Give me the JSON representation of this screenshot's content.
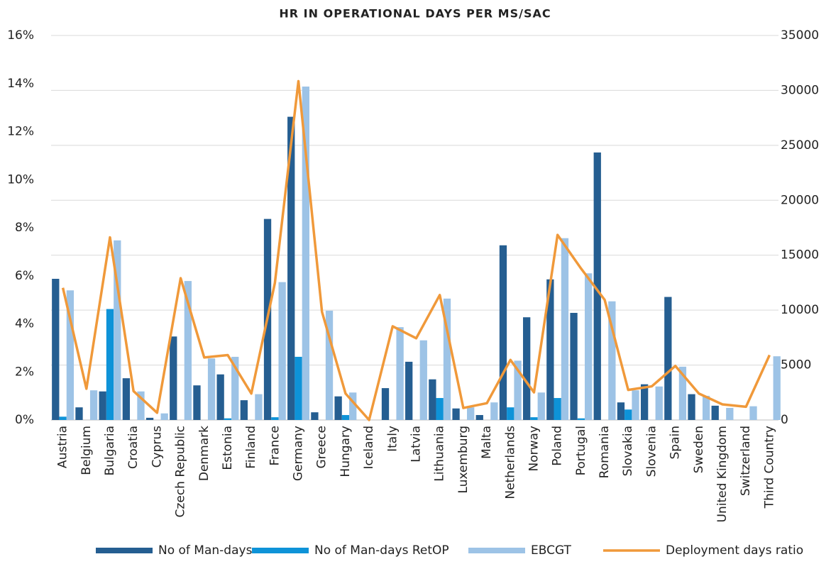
{
  "chart_data": {
    "type": "bar",
    "title": "HR IN OPERATIONAL DAYS PER MS/SAC",
    "categories": [
      "Austria",
      "Belgium",
      "Bulgaria",
      "Croatia",
      "Cyprus",
      "Czech Republic",
      "Denmark",
      "Estonia",
      "Finland",
      "France",
      "Germany",
      "Greece",
      "Hungary",
      "Iceland",
      "Italy",
      "Latvia",
      "Lithuania",
      "Luxemburg",
      "Malta",
      "Netherlands",
      "Norway",
      "Poland",
      "Portugal",
      "Romania",
      "Slovakia",
      "Slovenia",
      "Spain",
      "Sweden",
      "United Kingdom",
      "Switzerland",
      "Third Country"
    ],
    "series": [
      {
        "name": "No of Man-days",
        "color": "#255e91",
        "axis": "y2",
        "values": [
          12850,
          1150,
          2600,
          3800,
          200,
          7600,
          3150,
          4150,
          1800,
          18300,
          27600,
          700,
          2150,
          0,
          2900,
          5300,
          3700,
          1050,
          450,
          15900,
          9350,
          12800,
          9750,
          24350,
          1600,
          3250,
          11200,
          2350,
          1300,
          0,
          0
        ]
      },
      {
        "name": "No of Man-days RetOP",
        "color": "#0e93d8",
        "axis": "y2",
        "values": [
          300,
          0,
          10100,
          0,
          0,
          0,
          0,
          150,
          0,
          250,
          5750,
          0,
          450,
          0,
          0,
          0,
          2000,
          0,
          0,
          1150,
          250,
          2000,
          150,
          0,
          950,
          0,
          0,
          0,
          0,
          0,
          0
        ]
      },
      {
        "name": "EBCGT",
        "color": "#9dc3e6",
        "axis": "y2",
        "values": [
          11800,
          2700,
          16350,
          2600,
          600,
          12650,
          5600,
          5750,
          2350,
          12550,
          30350,
          9950,
          2500,
          0,
          8450,
          7250,
          11050,
          1150,
          1600,
          5400,
          2500,
          16550,
          13350,
          10800,
          2700,
          3050,
          4850,
          2200,
          1100,
          1250,
          5800
        ]
      },
      {
        "name": "Deployment days ratio",
        "color": "#f0993a",
        "type": "line",
        "axis": "y",
        "values": [
          5.5,
          1.3,
          7.6,
          1.2,
          0.3,
          5.9,
          2.6,
          2.7,
          1.1,
          5.7,
          14.1,
          4.5,
          1.1,
          0,
          3.9,
          3.4,
          5.2,
          0.5,
          0.7,
          2.5,
          1.15,
          7.7,
          6.3,
          5.0,
          1.25,
          1.4,
          2.25,
          1.1,
          0.65,
          0.55,
          2.7
        ]
      }
    ],
    "ylim": [
      0,
      16
    ],
    "yticks": [
      {
        "value": 0,
        "label": "0%"
      },
      {
        "value": 2,
        "label": "2%"
      },
      {
        "value": 4,
        "label": "4%"
      },
      {
        "value": 6,
        "label": "6%"
      },
      {
        "value": 8,
        "label": "8%"
      },
      {
        "value": 10,
        "label": "10%"
      },
      {
        "value": 12,
        "label": "12%"
      },
      {
        "value": 14,
        "label": "14%"
      },
      {
        "value": 16,
        "label": "16%"
      }
    ],
    "y2lim": [
      0,
      35000
    ],
    "y2ticks": [
      0,
      5000,
      10000,
      15000,
      20000,
      25000,
      30000,
      35000
    ],
    "grid": true,
    "legend": "bottom"
  }
}
